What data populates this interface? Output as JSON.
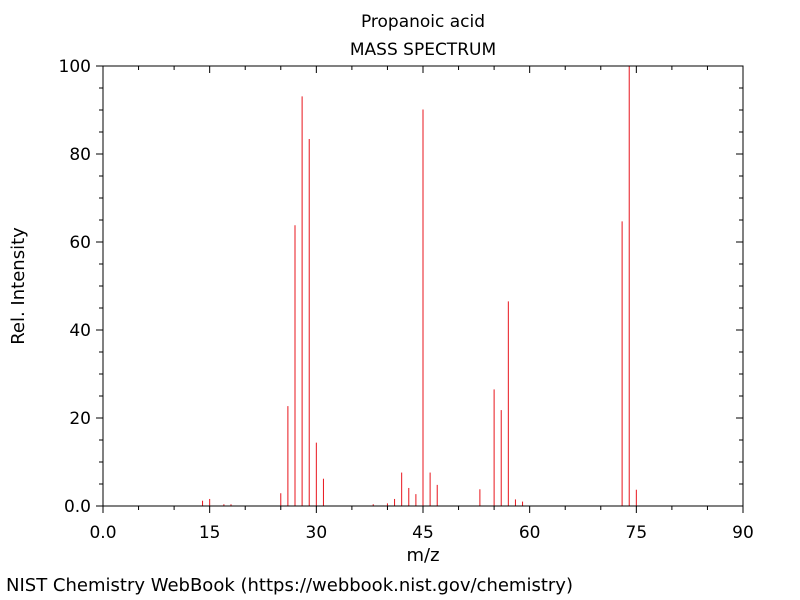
{
  "footer": "NIST Chemistry WebBook (https://webbook.nist.gov/chemistry)",
  "chart_data": {
    "type": "bar",
    "title": "Propanoic acid",
    "subtitle": "MASS SPECTRUM",
    "xlabel": "m/z",
    "ylabel": "Rel. Intensity",
    "xlim": [
      0,
      90
    ],
    "ylim": [
      0,
      100
    ],
    "xticks": [
      "0.0",
      "15",
      "30",
      "45",
      "60",
      "75",
      "90"
    ],
    "yticks": [
      "0.0",
      "20",
      "40",
      "60",
      "80",
      "100"
    ],
    "grid": false,
    "bar_color": "#e8141c",
    "peaks": {
      "mz": [
        14,
        15,
        17,
        18,
        25,
        26,
        27,
        28,
        29,
        30,
        31,
        38,
        40,
        41,
        42,
        43,
        44,
        45,
        46,
        47,
        53,
        55,
        56,
        57,
        58,
        59,
        73,
        74,
        75
      ],
      "intensity": [
        1.2,
        1.6,
        0.4,
        0.4,
        2.9,
        22.7,
        63.8,
        93.1,
        83.4,
        14.4,
        6.2,
        0.4,
        0.6,
        1.6,
        7.6,
        4.1,
        2.7,
        90.1,
        7.6,
        4.8,
        3.8,
        26.5,
        21.8,
        46.5,
        1.5,
        1.0,
        64.7,
        100,
        3.7
      ]
    }
  }
}
